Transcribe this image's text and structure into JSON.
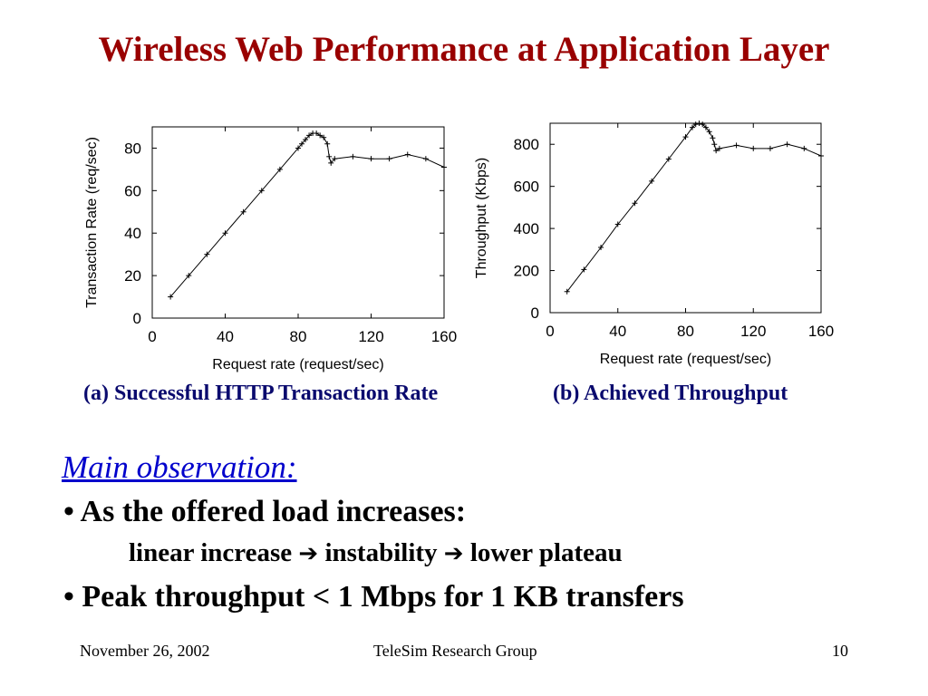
{
  "slide": {
    "title": "Wireless Web Performance at Application Layer",
    "observation_heading": "Main observation:",
    "bullet_char": "•",
    "bullets": [
      "As the offered load increases:",
      "Peak throughput < 1 Mbps for 1 KB transfers"
    ],
    "sub_items": [
      "linear increase",
      "instability",
      "lower plateau"
    ],
    "arrow_icon": "arrow-right-icon",
    "footer": {
      "date": "November 26, 2002",
      "group": "TeleSim Research Group",
      "page": "10"
    },
    "colors": {
      "title": "#990000",
      "caption": "#0a0a6e",
      "heading": "#0000cc"
    }
  },
  "chart_data": [
    {
      "type": "line",
      "caption": "(a) Successful HTTP Transaction Rate",
      "xlabel": "Request rate (request/sec)",
      "ylabel": "Transaction Rate (req/sec)",
      "xlim": [
        0,
        160
      ],
      "ylim": [
        0,
        90
      ],
      "xticks": [
        0,
        40,
        80,
        120,
        160
      ],
      "yticks": [
        0,
        20,
        40,
        60,
        80
      ],
      "grid": false,
      "series": [
        {
          "x": [
            10,
            20,
            30,
            40,
            50,
            60,
            70,
            80,
            82,
            84,
            86,
            88,
            90,
            92,
            94,
            96,
            97,
            98,
            100,
            110,
            120,
            130,
            140,
            150,
            160
          ],
          "y": [
            10,
            20,
            30,
            40,
            50,
            60,
            70,
            80,
            82,
            84,
            86,
            87,
            87,
            86,
            85,
            82,
            76,
            73,
            75,
            76,
            75,
            75,
            77,
            75,
            71
          ]
        }
      ]
    },
    {
      "type": "line",
      "caption": "(b) Achieved Throughput",
      "xlabel": "Request rate (request/sec)",
      "ylabel": "Throughput (Kbps)",
      "xlim": [
        0,
        160
      ],
      "ylim": [
        0,
        900
      ],
      "xticks": [
        0,
        40,
        80,
        120,
        160
      ],
      "yticks": [
        0,
        200,
        400,
        600,
        800
      ],
      "grid": false,
      "series": [
        {
          "x": [
            10,
            20,
            30,
            40,
            50,
            60,
            70,
            80,
            84,
            86,
            88,
            90,
            92,
            94,
            96,
            97,
            98,
            100,
            110,
            120,
            130,
            140,
            150,
            160
          ],
          "y": [
            100,
            205,
            310,
            420,
            520,
            625,
            730,
            835,
            880,
            895,
            900,
            895,
            880,
            860,
            830,
            800,
            770,
            780,
            795,
            780,
            780,
            800,
            780,
            745
          ]
        }
      ]
    }
  ]
}
